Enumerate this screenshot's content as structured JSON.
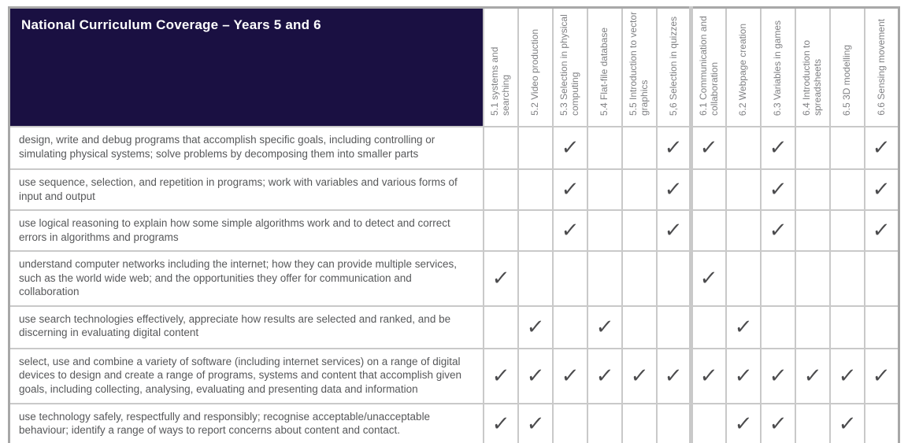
{
  "title": "National Curriculum Coverage – Years 5 and 6",
  "check_glyph": "✓",
  "year6_start_index": 6,
  "colors": {
    "header_bg": "#1a1042",
    "header_text": "#ffffff",
    "column_header_text": "#808184",
    "body_text": "#57585a",
    "checkmark": "#4b4b4d",
    "grid_border": "#c9c9c9"
  },
  "columns": [
    "5.1 systems and searching",
    "5.2 Video production",
    "5.3 Selection in physical computing",
    "5.4 Flat-file database",
    "5.5 Introduction to vector graphics",
    "5,6 Selection in quizzes",
    "6.1 Communication and collaboration",
    "6.2 Webpage creation",
    "6.3 Variables in games",
    "6.4 Introduction to spreadsheets",
    "6.5 3D modelling",
    "6.6 Sensing movement"
  ],
  "rows": [
    {
      "objective": "design, write and debug programs that accomplish specific goals, including controlling or simulating physical systems; solve problems by decomposing them into smaller parts",
      "checks": [
        0,
        0,
        1,
        0,
        0,
        1,
        1,
        0,
        1,
        0,
        0,
        1
      ]
    },
    {
      "objective": "use sequence, selection, and repetition in programs; work with variables and various forms of input and output",
      "checks": [
        0,
        0,
        1,
        0,
        0,
        1,
        0,
        0,
        1,
        0,
        0,
        1
      ]
    },
    {
      "objective": "use logical reasoning to explain how some simple algorithms work and to detect and correct errors in algorithms and programs",
      "checks": [
        0,
        0,
        1,
        0,
        0,
        1,
        0,
        0,
        1,
        0,
        0,
        1
      ]
    },
    {
      "objective": "understand computer networks including the internet; how they can provide multiple services, such as the world wide web; and the opportunities they offer for communication and collaboration",
      "checks": [
        1,
        0,
        0,
        0,
        0,
        0,
        1,
        0,
        0,
        0,
        0,
        0
      ]
    },
    {
      "objective": "use search technologies effectively, appreciate how results are selected and ranked, and be discerning in evaluating digital content",
      "checks": [
        0,
        1,
        0,
        1,
        0,
        0,
        0,
        1,
        0,
        0,
        0,
        0
      ]
    },
    {
      "objective": "select, use and combine a variety of software (including internet services) on a range of digital devices to design and create a range of programs, systems and content that accomplish given goals, including collecting, analysing, evaluating and presenting data and information",
      "checks": [
        1,
        1,
        1,
        1,
        1,
        1,
        1,
        1,
        1,
        1,
        1,
        1
      ]
    },
    {
      "objective": "use technology safely, respectfully and responsibly; recognise acceptable/unacceptable behaviour; identify a range of ways to report concerns about content and contact.",
      "checks": [
        1,
        1,
        0,
        0,
        0,
        0,
        0,
        1,
        1,
        0,
        1,
        0
      ]
    }
  ]
}
